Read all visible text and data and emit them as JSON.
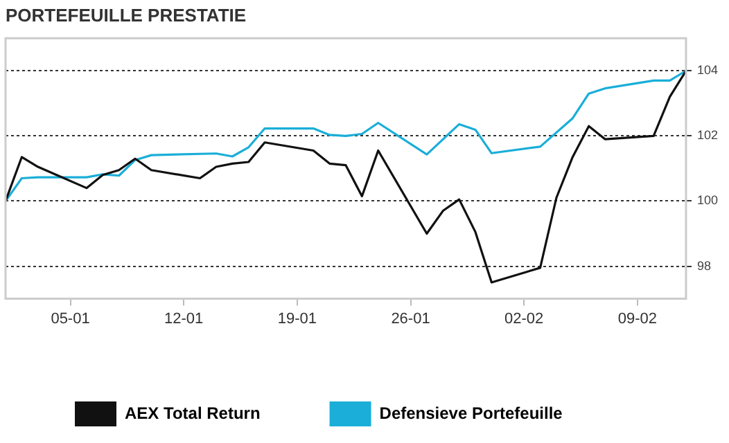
{
  "chart_data": {
    "type": "line",
    "title": "PORTEFEUILLE PRESTATIE",
    "xlim": [
      "--01-01",
      "--02-12"
    ],
    "xticks": [
      {
        "value": "--01-05",
        "label": "05-01"
      },
      {
        "value": "--01-12",
        "label": "12-01"
      },
      {
        "value": "--01-19",
        "label": "19-01"
      },
      {
        "value": "--01-26",
        "label": "26-01"
      },
      {
        "value": "--02-02",
        "label": "02-02"
      },
      {
        "value": "--02-09",
        "label": "09-02"
      }
    ],
    "ylim": [
      97,
      105
    ],
    "yticks": [
      98,
      100,
      102,
      104
    ],
    "grid": "y",
    "legend": "bottom",
    "marker": "none",
    "line_style": "solid",
    "series": [
      {
        "name": "AEX Total Return",
        "color": "#111111",
        "x": [
          "--01-01",
          "--01-02",
          "--01-03",
          "--01-06",
          "--01-07",
          "--01-08",
          "--01-09",
          "--01-10",
          "--01-13",
          "--01-14",
          "--01-15",
          "--01-16",
          "--01-17",
          "--01-20",
          "--01-21",
          "--01-22",
          "--01-23",
          "--01-24",
          "--01-27",
          "--01-28",
          "--01-29",
          "--01-30",
          "--01-31",
          "--02-03",
          "--02-04",
          "--02-05",
          "--02-06",
          "--02-07",
          "--02-10",
          "--02-11",
          "--02-12"
        ],
        "values": [
          100.0,
          101.35,
          101.05,
          100.4,
          100.8,
          100.95,
          101.3,
          100.95,
          100.7,
          101.05,
          101.15,
          101.2,
          101.8,
          101.55,
          101.15,
          101.1,
          100.15,
          101.55,
          99.0,
          99.7,
          100.05,
          99.05,
          97.5,
          97.95,
          100.1,
          101.35,
          102.3,
          101.9,
          102.0,
          103.2,
          104.0
        ]
      },
      {
        "name": "Defensieve Portefeuille",
        "color": "#1aaed8",
        "x": [
          "--01-01",
          "--01-02",
          "--01-03",
          "--01-06",
          "--01-07",
          "--01-08",
          "--01-09",
          "--01-10",
          "--01-14",
          "--01-15",
          "--01-16",
          "--01-17",
          "--01-20",
          "--01-21",
          "--01-22",
          "--01-23",
          "--01-24",
          "--01-27",
          "--01-29",
          "--01-30",
          "--01-31",
          "--02-03",
          "--02-05",
          "--02-06",
          "--02-07",
          "--02-10",
          "--02-11",
          "--02-12"
        ],
        "values": [
          100.0,
          100.7,
          100.73,
          100.73,
          100.82,
          100.78,
          101.26,
          101.41,
          101.46,
          101.37,
          101.65,
          102.23,
          102.23,
          102.03,
          102.0,
          102.06,
          102.4,
          101.43,
          102.36,
          102.19,
          101.47,
          101.67,
          102.54,
          103.3,
          103.46,
          103.7,
          103.7,
          104.0
        ]
      }
    ]
  }
}
